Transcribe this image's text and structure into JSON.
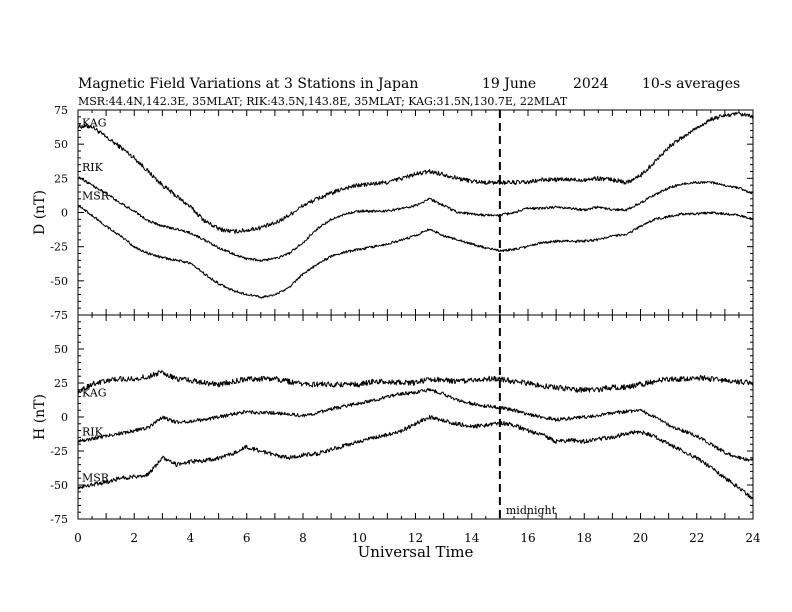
{
  "header": {
    "title": "Magnetic Field Variations at 3 Stations in Japan",
    "date": "19 June",
    "year": "2024",
    "averaging": "10-s averages",
    "stations_line": "MSR:44.4N,142.3E, 35MLAT;  RIK:43.5N,143.8E, 35MLAT;  KAG:31.5N,130.7E, 22MLAT"
  },
  "colors": {
    "trace": "#000000",
    "axis": "#000000",
    "background": "#ffffff"
  },
  "chart_data": [
    {
      "type": "line",
      "panel": "D",
      "ylabel": "D (nT)",
      "xlabel": "",
      "xlim": [
        0,
        24
      ],
      "ylim": [
        -75,
        75
      ],
      "xticks": [
        0,
        2,
        4,
        6,
        8,
        10,
        12,
        14,
        16,
        18,
        20,
        22,
        24
      ],
      "yticks": [
        75,
        50,
        25,
        0,
        -25,
        -50,
        -75
      ],
      "grid": false,
      "marker_line": {
        "x": 15,
        "style": "dashed"
      },
      "annotations": [],
      "series": [
        {
          "name": "KAG",
          "noise": 1.6,
          "x": [
            0,
            0.5,
            1,
            1.5,
            2,
            2.5,
            3,
            3.5,
            4,
            4.5,
            5,
            5.5,
            6,
            6.5,
            7,
            7.5,
            8,
            8.5,
            9,
            9.5,
            10,
            10.5,
            11,
            11.5,
            12,
            12.5,
            13,
            13.5,
            14,
            14.5,
            15,
            15.5,
            16,
            16.5,
            17,
            17.5,
            18,
            18.5,
            19,
            19.5,
            20,
            20.5,
            21,
            21.5,
            22,
            22.5,
            23,
            23.5,
            24
          ],
          "y": [
            63,
            63,
            55,
            48,
            40,
            30,
            20,
            12,
            4,
            -6,
            -12,
            -14,
            -13,
            -11,
            -8,
            -2,
            5,
            10,
            14,
            18,
            20,
            21,
            22,
            25,
            28,
            30,
            28,
            25,
            23,
            22,
            22,
            22,
            22,
            24,
            24,
            24,
            24,
            25,
            24,
            22,
            27,
            37,
            48,
            55,
            62,
            68,
            71,
            72,
            70
          ]
        },
        {
          "name": "RIK",
          "noise": 0.9,
          "x": [
            0,
            0.5,
            1,
            1.5,
            2,
            2.5,
            3,
            3.5,
            4,
            4.5,
            5,
            5.5,
            6,
            6.5,
            7,
            7.5,
            8,
            8.5,
            9,
            9.5,
            10,
            10.5,
            11,
            11.5,
            12,
            12.5,
            13,
            13.5,
            14,
            14.5,
            15,
            15.5,
            16,
            16.5,
            17,
            17.5,
            18,
            18.5,
            19,
            19.5,
            20,
            20.5,
            21,
            21.5,
            22,
            22.5,
            23,
            23.5,
            24
          ],
          "y": [
            26,
            20,
            14,
            7,
            1,
            -6,
            -10,
            -12,
            -15,
            -20,
            -26,
            -30,
            -34,
            -35,
            -34,
            -30,
            -22,
            -12,
            -5,
            -1,
            1,
            1,
            1,
            3,
            5,
            10,
            5,
            0,
            -1,
            -2,
            -2,
            0,
            3,
            3,
            4,
            3,
            2,
            4,
            2,
            2,
            7,
            13,
            18,
            21,
            22,
            22,
            20,
            18,
            14
          ]
        },
        {
          "name": "MSR",
          "noise": 0.9,
          "x": [
            0,
            0.5,
            1,
            1.5,
            2,
            2.5,
            3,
            3.5,
            4,
            4.5,
            5,
            5.5,
            6,
            6.5,
            7,
            7.5,
            8,
            8.5,
            9,
            9.5,
            10,
            10.5,
            11,
            11.5,
            12,
            12.5,
            13,
            13.5,
            14,
            14.5,
            15,
            15.5,
            16,
            16.5,
            17,
            17.5,
            18,
            18.5,
            19,
            19.5,
            20,
            20.5,
            21,
            21.5,
            22,
            22.5,
            23,
            23.5,
            24
          ],
          "y": [
            5,
            -2,
            -10,
            -17,
            -25,
            -30,
            -33,
            -35,
            -37,
            -45,
            -52,
            -57,
            -60,
            -62,
            -60,
            -55,
            -45,
            -38,
            -32,
            -29,
            -27,
            -25,
            -23,
            -20,
            -17,
            -12,
            -17,
            -20,
            -23,
            -26,
            -28,
            -27,
            -25,
            -22,
            -21,
            -21,
            -21,
            -20,
            -17,
            -16,
            -10,
            -5,
            -3,
            -1,
            -1,
            0,
            -1,
            -2,
            -5
          ]
        }
      ]
    },
    {
      "type": "line",
      "panel": "H",
      "ylabel": "H (nT)",
      "xlabel": "Universal Time",
      "xlim": [
        0,
        24
      ],
      "ylim": [
        -75,
        75
      ],
      "xticks": [
        0,
        2,
        4,
        6,
        8,
        10,
        12,
        14,
        16,
        18,
        20,
        22,
        24
      ],
      "yticks": [
        75,
        50,
        25,
        0,
        -25,
        -50,
        -75
      ],
      "grid": false,
      "marker_line": {
        "x": 15,
        "style": "dashed",
        "label": "midnight"
      },
      "series": [
        {
          "name": "KAG",
          "noise": 2.0,
          "x": [
            0,
            0.5,
            1,
            1.5,
            2,
            2.5,
            3,
            3.5,
            4,
            4.5,
            5,
            5.5,
            6,
            6.5,
            7,
            7.5,
            8,
            8.5,
            9,
            9.5,
            10,
            10.5,
            11,
            11.5,
            12,
            12.5,
            13,
            13.5,
            14,
            14.5,
            15,
            15.5,
            16,
            16.5,
            17,
            17.5,
            18,
            18.5,
            19,
            19.5,
            20,
            20.5,
            21,
            21.5,
            22,
            22.5,
            23,
            23.5,
            24
          ],
          "y": [
            18,
            24,
            27,
            28,
            28,
            30,
            33,
            28,
            27,
            25,
            24,
            26,
            28,
            28,
            28,
            26,
            24,
            24,
            24,
            24,
            24,
            26,
            26,
            25,
            25,
            28,
            27,
            26,
            27,
            28,
            28,
            26,
            25,
            23,
            22,
            20,
            20,
            20,
            22,
            22,
            24,
            26,
            28,
            28,
            29,
            28,
            27,
            26,
            25
          ]
        },
        {
          "name": "RIK",
          "noise": 1.3,
          "x": [
            0,
            0.5,
            1,
            1.5,
            2,
            2.5,
            3,
            3.5,
            4,
            4.5,
            5,
            5.5,
            6,
            6.5,
            7,
            7.5,
            8,
            8.5,
            9,
            9.5,
            10,
            10.5,
            11,
            11.5,
            12,
            12.5,
            13,
            13.5,
            14,
            14.5,
            15,
            15.5,
            16,
            16.5,
            17,
            17.5,
            18,
            18.5,
            19,
            19.5,
            20,
            20.5,
            21,
            21.5,
            22,
            22.5,
            23,
            23.5,
            24
          ],
          "y": [
            -18,
            -16,
            -14,
            -12,
            -10,
            -8,
            0,
            -4,
            -3,
            -2,
            0,
            2,
            4,
            3,
            3,
            2,
            1,
            3,
            6,
            8,
            10,
            12,
            15,
            17,
            18,
            20,
            17,
            12,
            10,
            8,
            7,
            5,
            2,
            0,
            -2,
            -1,
            0,
            1,
            3,
            4,
            5,
            0,
            -6,
            -10,
            -14,
            -20,
            -26,
            -30,
            -32
          ]
        },
        {
          "name": "MSR",
          "noise": 1.5,
          "x": [
            0,
            0.5,
            1,
            1.5,
            2,
            2.5,
            3,
            3.5,
            4,
            4.5,
            5,
            5.5,
            6,
            6.5,
            7,
            7.5,
            8,
            8.5,
            9,
            9.5,
            10,
            10.5,
            11,
            11.5,
            12,
            12.5,
            13,
            13.5,
            14,
            14.5,
            15,
            15.5,
            16,
            16.5,
            17,
            17.5,
            18,
            18.5,
            19,
            19.5,
            20,
            20.5,
            21,
            21.5,
            22,
            22.5,
            23,
            23.5,
            24
          ],
          "y": [
            -52,
            -50,
            -48,
            -45,
            -44,
            -42,
            -30,
            -35,
            -33,
            -32,
            -30,
            -27,
            -22,
            -25,
            -28,
            -30,
            -28,
            -27,
            -24,
            -21,
            -18,
            -15,
            -13,
            -10,
            -5,
            0,
            -3,
            -5,
            -7,
            -6,
            -4,
            -6,
            -10,
            -13,
            -18,
            -17,
            -18,
            -16,
            -15,
            -12,
            -11,
            -14,
            -20,
            -25,
            -30,
            -37,
            -45,
            -52,
            -60
          ]
        }
      ]
    }
  ]
}
